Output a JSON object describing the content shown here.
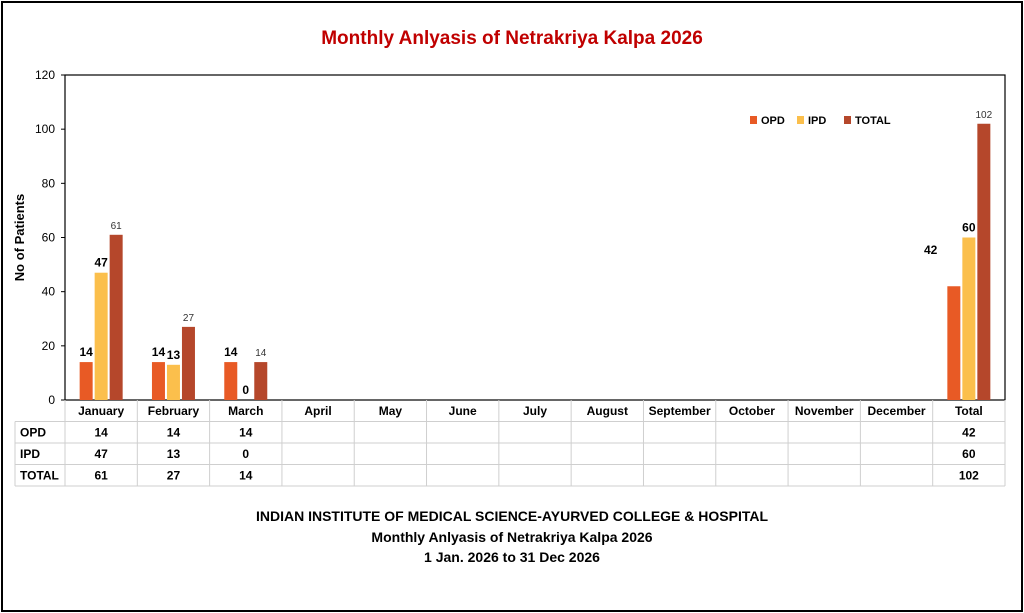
{
  "title": "Monthly Anlyasis of Netrakriya Kalpa  2026",
  "footer": {
    "line1": "INDIAN INSTITUTE OF MEDICAL SCIENCE-AYURVED COLLEGE & HOSPITAL",
    "line2": "Monthly Anlyasis of Netrakriya Kalpa  2026",
    "line3": "1 Jan. 2026 to 31 Dec 2026"
  },
  "colors": {
    "OPD": "#e85a25",
    "IPD": "#fbbf4c",
    "TOTAL": "#b5472b",
    "title": "#c00000"
  },
  "chart_data": {
    "type": "bar",
    "title": "Monthly Anlyasis of Netrakriya Kalpa  2026",
    "ylabel": "No of Patients",
    "xlabel": "",
    "ylim": [
      0,
      120
    ],
    "yticks": [
      0,
      20,
      40,
      60,
      80,
      100,
      120
    ],
    "legend": "top-right",
    "grid": false,
    "categories": [
      "January",
      "February",
      "March",
      "April",
      "May",
      "June",
      "July",
      "August",
      "September",
      "October",
      "November",
      "December",
      "Total"
    ],
    "series": [
      {
        "name": "OPD",
        "values": [
          14,
          14,
          14,
          null,
          null,
          null,
          null,
          null,
          null,
          null,
          null,
          null,
          42
        ]
      },
      {
        "name": "IPD",
        "values": [
          47,
          13,
          0,
          null,
          null,
          null,
          null,
          null,
          null,
          null,
          null,
          null,
          60
        ]
      },
      {
        "name": "TOTAL",
        "values": [
          61,
          27,
          14,
          null,
          null,
          null,
          null,
          null,
          null,
          null,
          null,
          null,
          102
        ]
      }
    ]
  }
}
